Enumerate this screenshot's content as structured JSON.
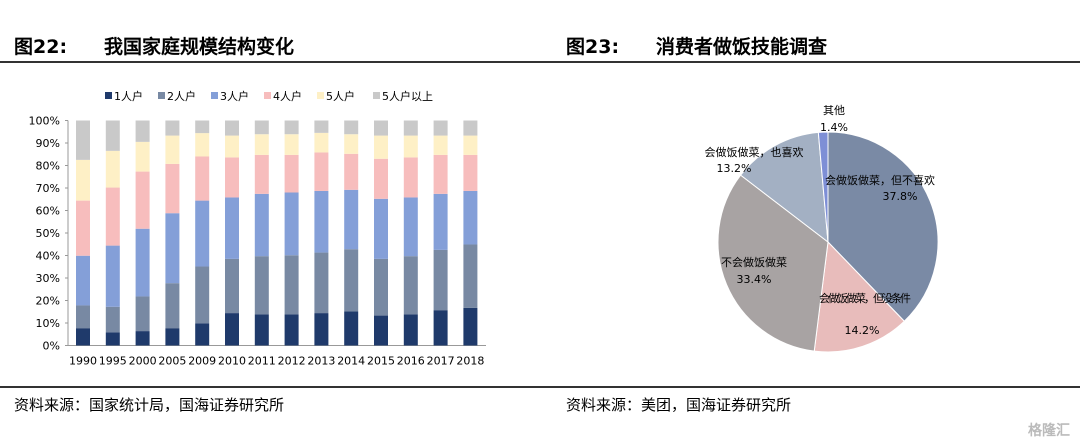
{
  "left": {
    "fig": "图22:",
    "title": "我国家庭规模结构变化",
    "source": "资料来源：国家统计局，国海证券研究所"
  },
  "right": {
    "fig": "图23:",
    "title": "消费者做饭技能调查",
    "source": "资料来源：美团，国海证券研究所"
  },
  "watermark": "格隆汇",
  "chart_data": [
    {
      "type": "bar",
      "stacked": true,
      "title": "我国家庭规模结构变化",
      "categories": [
        "1990",
        "1995",
        "2000",
        "2005",
        "2009",
        "2010",
        "2011",
        "2012",
        "2013",
        "2014",
        "2015",
        "2016",
        "2017",
        "2018"
      ],
      "yticks": [
        "0%",
        "10%",
        "20%",
        "30%",
        "40%",
        "50%",
        "60%",
        "70%",
        "80%",
        "90%",
        "100%"
      ],
      "ylim": [
        0,
        100
      ],
      "legend_position": "top",
      "series": [
        {
          "name": "1人户",
          "color": "#1f3a6b",
          "values": [
            7.7,
            5.8,
            6.4,
            7.7,
            9.8,
            14.4,
            13.8,
            13.8,
            14.4,
            15.1,
            13.3,
            13.8,
            15.7,
            16.7
          ]
        },
        {
          "name": "2人户",
          "color": "#7889a3",
          "values": [
            10.1,
            11.4,
            15.4,
            20.0,
            25.3,
            24.1,
            25.9,
            26.3,
            26.9,
            27.7,
            25.2,
            25.9,
            26.8,
            28.2
          ]
        },
        {
          "name": "3人户",
          "color": "#849fd8",
          "values": [
            22.1,
            27.2,
            30.1,
            31.1,
            29.3,
            27.3,
            27.7,
            27.9,
            27.4,
            26.4,
            26.7,
            26.1,
            24.9,
            23.8
          ]
        },
        {
          "name": "4人户",
          "color": "#f7bdbd",
          "values": [
            24.5,
            25.8,
            25.4,
            21.9,
            19.6,
            17.8,
            17.3,
            16.7,
            17.1,
            16.0,
            17.8,
            17.8,
            17.3,
            16.0
          ]
        },
        {
          "name": "5人户",
          "color": "#fef0c6",
          "values": [
            18.1,
            16.3,
            13.2,
            12.6,
            10.4,
            9.7,
            9.2,
            9.2,
            8.7,
            8.7,
            10.3,
            9.7,
            8.6,
            8.6
          ]
        },
        {
          "name": "5人户以上",
          "color": "#c9c9c9",
          "values": [
            17.5,
            13.5,
            9.5,
            6.7,
            5.6,
            6.7,
            6.1,
            6.1,
            5.5,
            6.1,
            6.7,
            6.7,
            6.7,
            6.7
          ]
        }
      ]
    },
    {
      "type": "pie",
      "title": "消费者做饭技能调查",
      "slices": [
        {
          "label": "会做饭做菜，但不喜欢",
          "value": 37.8,
          "text": "37.8%",
          "color": "#7a8aa5"
        },
        {
          "label": "会做饭做菜，但没条件",
          "value": 14.2,
          "text": "14.2%",
          "color": "#e8bcbb"
        },
        {
          "label": "不会做饭做菜",
          "value": 33.4,
          "text": "33.4%",
          "color": "#a8a3a3"
        },
        {
          "label": "会做饭做菜，也喜欢",
          "value": 13.2,
          "text": "13.2%",
          "color": "#a3b0c3"
        },
        {
          "label": "其他",
          "value": 1.4,
          "text": "1.4%",
          "color": "#7e8fd6"
        }
      ]
    }
  ]
}
